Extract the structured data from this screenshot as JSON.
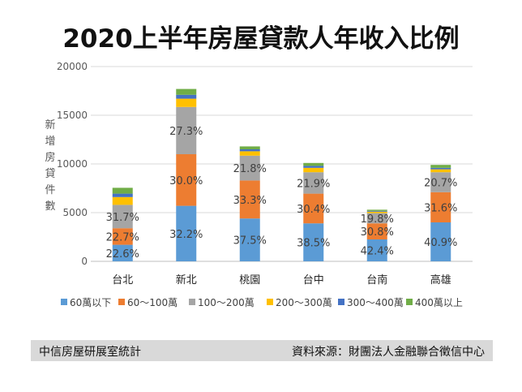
{
  "title": "2020上半年房屋貸款人年收入比例",
  "footer": {
    "source_left": "中信房屋研展室統計",
    "source_right": "資料來源：財團法人金融聯合徵信中心"
  },
  "colors": {
    "series": [
      "#5b9bd5",
      "#ed7d31",
      "#a5a5a5",
      "#ffc000",
      "#4472c4",
      "#70ad47"
    ],
    "label": "#404040",
    "grid": "#d9d9d9",
    "axis": "#595959"
  },
  "chart_data": {
    "type": "bar",
    "stacked": true,
    "ylabel": "新增房貸件數",
    "ylim": [
      0,
      20000
    ],
    "yticks": [
      0,
      5000,
      10000,
      15000,
      20000
    ],
    "categories": [
      "台北",
      "新北",
      "桃園",
      "台中",
      "台南",
      "高雄"
    ],
    "legend_position": "bottom",
    "series": [
      {
        "name": "60萬以下",
        "values": [
          1700,
          5700,
          4400,
          3900,
          2250,
          4000
        ],
        "labels": [
          "22.6%",
          "32.2%",
          "37.5%",
          "38.5%",
          "42.4%",
          "40.9%"
        ]
      },
      {
        "name": "60～100萬",
        "values": [
          1700,
          5300,
          3900,
          3050,
          1650,
          3100
        ],
        "labels": [
          "22.7%",
          "30.0%",
          "33.3%",
          "30.4%",
          "30.8%",
          "31.6%"
        ]
      },
      {
        "name": "100～200萬",
        "values": [
          2400,
          4850,
          2550,
          2200,
          1050,
          2050
        ],
        "labels": [
          "31.7%",
          "27.3%",
          "21.8%",
          "21.9%",
          "19.8%",
          "20.7%"
        ]
      },
      {
        "name": "200～300萬",
        "values": [
          800,
          850,
          450,
          450,
          150,
          300
        ],
        "labels": [
          "",
          "",
          "",
          "",
          "",
          ""
        ]
      },
      {
        "name": "300～400萬",
        "values": [
          350,
          400,
          200,
          200,
          80,
          150
        ],
        "labels": [
          "",
          "",
          "",
          "",
          "",
          ""
        ]
      },
      {
        "name": "400萬以上",
        "values": [
          600,
          600,
          300,
          300,
          120,
          300
        ],
        "labels": [
          "",
          "",
          "",
          "",
          "",
          ""
        ]
      }
    ]
  }
}
